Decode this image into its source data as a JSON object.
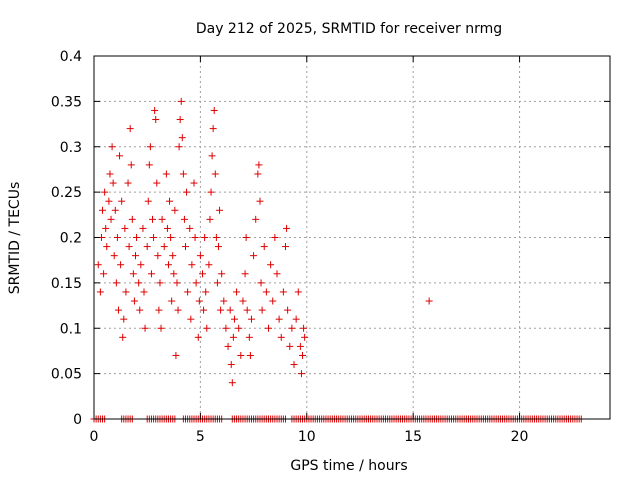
{
  "chart_data": {
    "type": "scatter",
    "title": "Day 212 of 2025, SRMTID for receiver nrmg",
    "xlabel": "GPS time / hours",
    "ylabel": "SRMTID / TECUs",
    "xlim": [
      0,
      24.25
    ],
    "ylim": [
      0,
      0.4
    ],
    "grid": true,
    "marker": "+",
    "color": "#e00000",
    "x_ticks": [
      {
        "value": 0,
        "label": "0"
      },
      {
        "value": 5,
        "label": "5"
      },
      {
        "value": 10,
        "label": "10"
      },
      {
        "value": 15,
        "label": "15"
      },
      {
        "value": 20,
        "label": "20"
      }
    ],
    "y_ticks": [
      {
        "value": 0,
        "label": "0"
      },
      {
        "value": 0.05,
        "label": "0.05"
      },
      {
        "value": 0.1,
        "label": "0.1"
      },
      {
        "value": 0.15,
        "label": "0.15"
      },
      {
        "value": 0.2,
        "label": "0.2"
      },
      {
        "value": 0.25,
        "label": "0.25"
      },
      {
        "value": 0.3,
        "label": "0.3"
      },
      {
        "value": 0.35,
        "label": "0.35"
      },
      {
        "value": 0.4,
        "label": "0.4"
      }
    ],
    "series": [
      {
        "name": "SRMTID",
        "points": [
          [
            0.2,
            0.17
          ],
          [
            0.3,
            0.14
          ],
          [
            0.35,
            0.2
          ],
          [
            0.4,
            0.23
          ],
          [
            0.45,
            0.16
          ],
          [
            0.5,
            0.25
          ],
          [
            0.55,
            0.21
          ],
          [
            0.6,
            0.19
          ],
          [
            0.7,
            0.24
          ],
          [
            0.75,
            0.27
          ],
          [
            0.8,
            0.22
          ],
          [
            0.85,
            0.3
          ],
          [
            0.9,
            0.26
          ],
          [
            0.95,
            0.18
          ],
          [
            1.0,
            0.23
          ],
          [
            1.05,
            0.15
          ],
          [
            1.1,
            0.2
          ],
          [
            1.15,
            0.12
          ],
          [
            1.2,
            0.29
          ],
          [
            1.25,
            0.17
          ],
          [
            1.3,
            0.24
          ],
          [
            1.35,
            0.09
          ],
          [
            1.4,
            0.11
          ],
          [
            1.45,
            0.21
          ],
          [
            1.5,
            0.14
          ],
          [
            1.6,
            0.26
          ],
          [
            1.65,
            0.19
          ],
          [
            1.7,
            0.32
          ],
          [
            1.75,
            0.28
          ],
          [
            1.8,
            0.22
          ],
          [
            1.85,
            0.16
          ],
          [
            1.9,
            0.13
          ],
          [
            1.95,
            0.18
          ],
          [
            2.0,
            0.2
          ],
          [
            2.1,
            0.15
          ],
          [
            2.15,
            0.12
          ],
          [
            2.2,
            0.17
          ],
          [
            2.3,
            0.21
          ],
          [
            2.35,
            0.14
          ],
          [
            2.4,
            0.1
          ],
          [
            2.5,
            0.19
          ],
          [
            2.55,
            0.24
          ],
          [
            2.6,
            0.28
          ],
          [
            2.65,
            0.3
          ],
          [
            2.7,
            0.16
          ],
          [
            2.75,
            0.22
          ],
          [
            2.8,
            0.2
          ],
          [
            2.85,
            0.34
          ],
          [
            2.9,
            0.33
          ],
          [
            2.95,
            0.26
          ],
          [
            3.0,
            0.18
          ],
          [
            3.05,
            0.12
          ],
          [
            3.1,
            0.15
          ],
          [
            3.15,
            0.1
          ],
          [
            3.2,
            0.22
          ],
          [
            3.3,
            0.19
          ],
          [
            3.4,
            0.27
          ],
          [
            3.45,
            0.21
          ],
          [
            3.5,
            0.17
          ],
          [
            3.55,
            0.24
          ],
          [
            3.6,
            0.2
          ],
          [
            3.65,
            0.13
          ],
          [
            3.7,
            0.18
          ],
          [
            3.75,
            0.16
          ],
          [
            3.8,
            0.23
          ],
          [
            3.85,
            0.07
          ],
          [
            3.9,
            0.15
          ],
          [
            3.95,
            0.12
          ],
          [
            4.0,
            0.3
          ],
          [
            4.05,
            0.33
          ],
          [
            4.1,
            0.35
          ],
          [
            4.15,
            0.31
          ],
          [
            4.2,
            0.27
          ],
          [
            4.25,
            0.22
          ],
          [
            4.3,
            0.19
          ],
          [
            4.35,
            0.25
          ],
          [
            4.4,
            0.14
          ],
          [
            4.5,
            0.21
          ],
          [
            4.55,
            0.11
          ],
          [
            4.6,
            0.17
          ],
          [
            4.7,
            0.26
          ],
          [
            4.75,
            0.2
          ],
          [
            4.8,
            0.15
          ],
          [
            4.9,
            0.09
          ],
          [
            4.95,
            0.13
          ],
          [
            5.0,
            0.18
          ],
          [
            5.1,
            0.16
          ],
          [
            5.15,
            0.12
          ],
          [
            5.2,
            0.2
          ],
          [
            5.25,
            0.14
          ],
          [
            5.3,
            0.1
          ],
          [
            5.4,
            0.17
          ],
          [
            5.45,
            0.22
          ],
          [
            5.5,
            0.25
          ],
          [
            5.55,
            0.29
          ],
          [
            5.6,
            0.32
          ],
          [
            5.65,
            0.34
          ],
          [
            5.7,
            0.27
          ],
          [
            5.75,
            0.2
          ],
          [
            5.8,
            0.15
          ],
          [
            5.85,
            0.19
          ],
          [
            5.9,
            0.23
          ],
          [
            5.95,
            0.12
          ],
          [
            6.0,
            0.16
          ],
          [
            6.1,
            0.13
          ],
          [
            6.2,
            0.1
          ],
          [
            6.3,
            0.08
          ],
          [
            6.4,
            0.12
          ],
          [
            6.45,
            0.06
          ],
          [
            6.5,
            0.04
          ],
          [
            6.55,
            0.09
          ],
          [
            6.6,
            0.11
          ],
          [
            6.7,
            0.14
          ],
          [
            6.8,
            0.1
          ],
          [
            6.9,
            0.07
          ],
          [
            7.0,
            0.13
          ],
          [
            7.1,
            0.16
          ],
          [
            7.15,
            0.2
          ],
          [
            7.2,
            0.12
          ],
          [
            7.3,
            0.09
          ],
          [
            7.35,
            0.07
          ],
          [
            7.4,
            0.11
          ],
          [
            7.5,
            0.18
          ],
          [
            7.6,
            0.22
          ],
          [
            7.7,
            0.27
          ],
          [
            7.75,
            0.28
          ],
          [
            7.8,
            0.24
          ],
          [
            7.85,
            0.15
          ],
          [
            7.9,
            0.12
          ],
          [
            8.0,
            0.19
          ],
          [
            8.1,
            0.14
          ],
          [
            8.2,
            0.1
          ],
          [
            8.3,
            0.17
          ],
          [
            8.4,
            0.13
          ],
          [
            8.5,
            0.2
          ],
          [
            8.6,
            0.16
          ],
          [
            8.7,
            0.11
          ],
          [
            8.8,
            0.09
          ],
          [
            8.9,
            0.14
          ],
          [
            9.0,
            0.19
          ],
          [
            9.05,
            0.21
          ],
          [
            9.1,
            0.12
          ],
          [
            9.2,
            0.08
          ],
          [
            9.3,
            0.1
          ],
          [
            9.4,
            0.06
          ],
          [
            9.5,
            0.11
          ],
          [
            9.6,
            0.14
          ],
          [
            9.7,
            0.08
          ],
          [
            9.75,
            0.05
          ],
          [
            9.8,
            0.07
          ],
          [
            9.85,
            0.1
          ],
          [
            9.9,
            0.09
          ],
          [
            15.75,
            0.13
          ]
        ]
      },
      {
        "name": "SRMTID (zero values)",
        "x_ranges": [
          [
            0,
            0.5
          ],
          [
            1.3,
            1.8
          ],
          [
            2.5,
            3.8
          ],
          [
            4.2,
            6.0
          ],
          [
            6.5,
            9.0
          ],
          [
            9.3,
            22.9
          ]
        ],
        "y": 0
      }
    ]
  }
}
